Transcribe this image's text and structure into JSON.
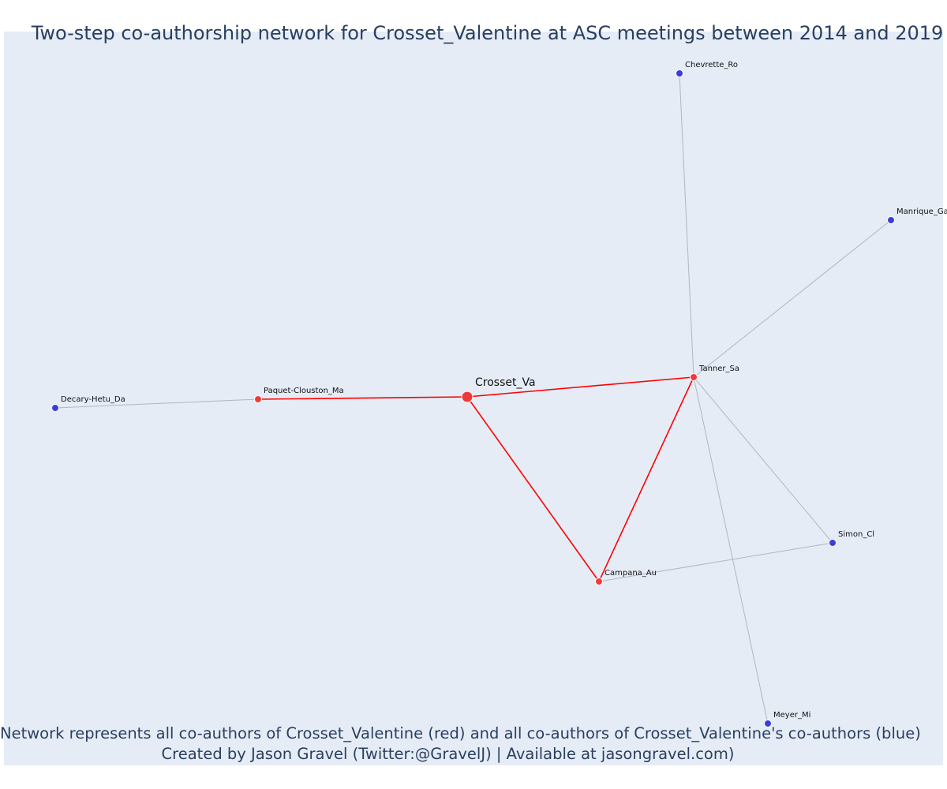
{
  "title": "Two-step co-authorship network for Crosset_Valentine at ASC meetings between 2014 and 2019",
  "footer": {
    "line1": "Network represents all co-authors of Crosset_Valentine (red) and all co-authors of Crosset_Valentine's co-authors (blue)",
    "line2": "Created by Jason Gravel (Twitter:@GravelJ) | Available at jasongravel.com)"
  },
  "colors": {
    "background": "#e5ecf6",
    "ego": "#ef3a3a",
    "first_degree": "#ef3a3a",
    "second_degree": "#3b3ddb",
    "ego_edge": "#ff0000",
    "other_edge": "#b4b4c4",
    "text": "#2a3f5f"
  },
  "nodes": [
    {
      "id": "Crosset_Va",
      "group": "ego"
    },
    {
      "id": "Tanner_Sa",
      "group": "first_degree"
    },
    {
      "id": "Paquet-Clouston_Ma",
      "group": "first_degree"
    },
    {
      "id": "Campana_Au",
      "group": "first_degree"
    },
    {
      "id": "Decary-Hetu_Da",
      "group": "second_degree"
    },
    {
      "id": "Chevrette_Ro",
      "group": "second_degree"
    },
    {
      "id": "Manrique_Ga",
      "group": "second_degree"
    },
    {
      "id": "Simon_Cl",
      "group": "second_degree"
    },
    {
      "id": "Meyer_Mi",
      "group": "second_degree"
    }
  ],
  "edges": [
    {
      "source": "Crosset_Va",
      "target": "Tanner_Sa",
      "type": "ego"
    },
    {
      "source": "Crosset_Va",
      "target": "Paquet-Clouston_Ma",
      "type": "ego"
    },
    {
      "source": "Crosset_Va",
      "target": "Campana_Au",
      "type": "ego"
    },
    {
      "source": "Tanner_Sa",
      "target": "Campana_Au",
      "type": "ego"
    },
    {
      "source": "Paquet-Clouston_Ma",
      "target": "Decary-Hetu_Da",
      "type": "other"
    },
    {
      "source": "Tanner_Sa",
      "target": "Chevrette_Ro",
      "type": "other"
    },
    {
      "source": "Tanner_Sa",
      "target": "Manrique_Ga",
      "type": "other"
    },
    {
      "source": "Tanner_Sa",
      "target": "Simon_Cl",
      "type": "other"
    },
    {
      "source": "Tanner_Sa",
      "target": "Meyer_Mi",
      "type": "other"
    },
    {
      "source": "Campana_Au",
      "target": "Simon_Cl",
      "type": "other"
    }
  ]
}
